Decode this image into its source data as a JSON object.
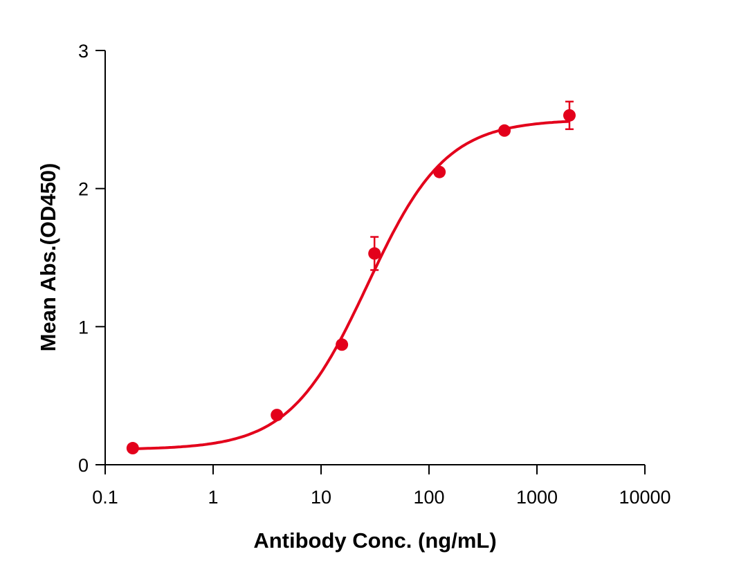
{
  "chart_data": {
    "type": "scatter",
    "title": "",
    "xlabel": "Antibody Conc. (ng/mL)",
    "ylabel": "Mean Abs.(OD450)",
    "xscale": "log",
    "xlim": [
      0.1,
      10000
    ],
    "ylim": [
      0,
      3
    ],
    "xticks": [
      0.1,
      1,
      10,
      100,
      1000,
      10000
    ],
    "xtick_labels": [
      "0.1",
      "1",
      "10",
      "100",
      "1000",
      "10000"
    ],
    "yticks": [
      0,
      1,
      2,
      3
    ],
    "ytick_labels": [
      "0",
      "1",
      "2",
      "3"
    ],
    "grid": false,
    "color": "#e3001b",
    "series": [
      {
        "name": "Mean Abs.",
        "x": [
          0.18,
          3.9,
          15.6,
          31.25,
          125,
          500,
          2000
        ],
        "y": [
          0.12,
          0.36,
          0.87,
          1.53,
          2.12,
          2.42,
          2.53
        ],
        "error": [
          0.01,
          0.01,
          0.01,
          0.12,
          0.01,
          0.01,
          0.1
        ]
      }
    ],
    "fit": {
      "model": "4PL",
      "bottom": 0.11,
      "top": 2.5,
      "ec50": 27,
      "hill": 1.2
    }
  }
}
